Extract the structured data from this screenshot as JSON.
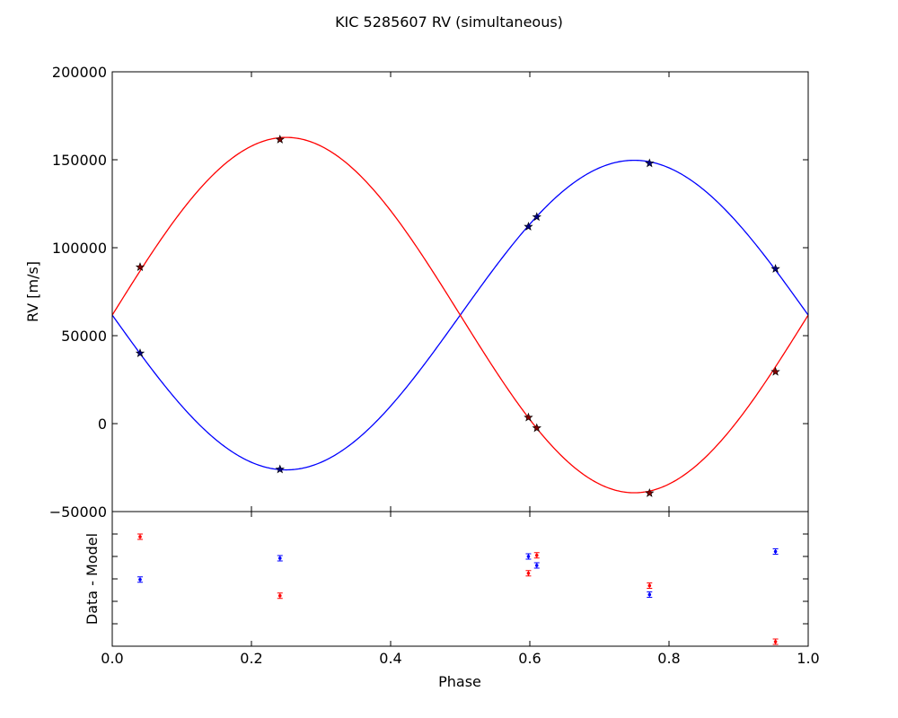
{
  "chart_data": [
    {
      "type": "line",
      "title": "KIC 5285607 RV (simultaneous)",
      "xlabel": "",
      "ylabel": "RV [m/s]",
      "xlim": [
        0.0,
        1.0
      ],
      "ylim": [
        -50000,
        200000
      ],
      "y_ticks": [
        "200000",
        "150000",
        "100000",
        "50000",
        "0",
        "−50000"
      ],
      "y_tick_values": [
        200000,
        150000,
        100000,
        50000,
        0,
        -50000
      ],
      "x_tick_values": [
        0.0,
        0.2,
        0.4,
        0.6,
        0.8,
        1.0
      ],
      "model_primary": {
        "gamma": 61700,
        "K": 88000,
        "color": "#0000ff"
      },
      "model_secondary": {
        "gamma": 61700,
        "K": 101000,
        "color": "#ff0000"
      },
      "series": [
        {
          "color": "#0000ff",
          "x": [
            0.04,
            0.241,
            0.598,
            0.61,
            0.772,
            0.953
          ],
          "y": [
            40000,
            -26000,
            112000,
            117500,
            148000,
            88000
          ]
        },
        {
          "color": "#ff0000",
          "x": [
            0.04,
            0.241,
            0.598,
            0.61,
            0.772,
            0.953
          ],
          "y": [
            89000,
            161500,
            3500,
            -2500,
            -39500,
            29500
          ]
        }
      ]
    },
    {
      "type": "scatter",
      "xlabel": "Phase",
      "ylabel": "Data - Model",
      "xlim": [
        0.0,
        1.0
      ],
      "ylim": [
        -5,
        1
      ],
      "x_ticks": [
        "0.0",
        "0.2",
        "0.4",
        "0.6",
        "0.8",
        "1.0"
      ],
      "x_tick_values": [
        0.0,
        0.2,
        0.4,
        0.6,
        0.8,
        1.0
      ],
      "y_tick_values": [
        0,
        -1,
        -2,
        -3,
        -4,
        -5
      ],
      "series": [
        {
          "color": "#0000ff",
          "x": [
            0.04,
            0.241,
            0.598,
            0.61,
            0.772,
            0.953
          ],
          "y": [
            -2.03,
            -1.08,
            -1.0,
            -1.4,
            -2.7,
            -0.78
          ]
        },
        {
          "color": "#ff0000",
          "x": [
            0.04,
            0.241,
            0.598,
            0.61,
            0.772,
            0.953
          ],
          "y": [
            -0.12,
            -2.75,
            -1.75,
            -0.95,
            -2.3,
            -4.8
          ]
        }
      ]
    }
  ]
}
